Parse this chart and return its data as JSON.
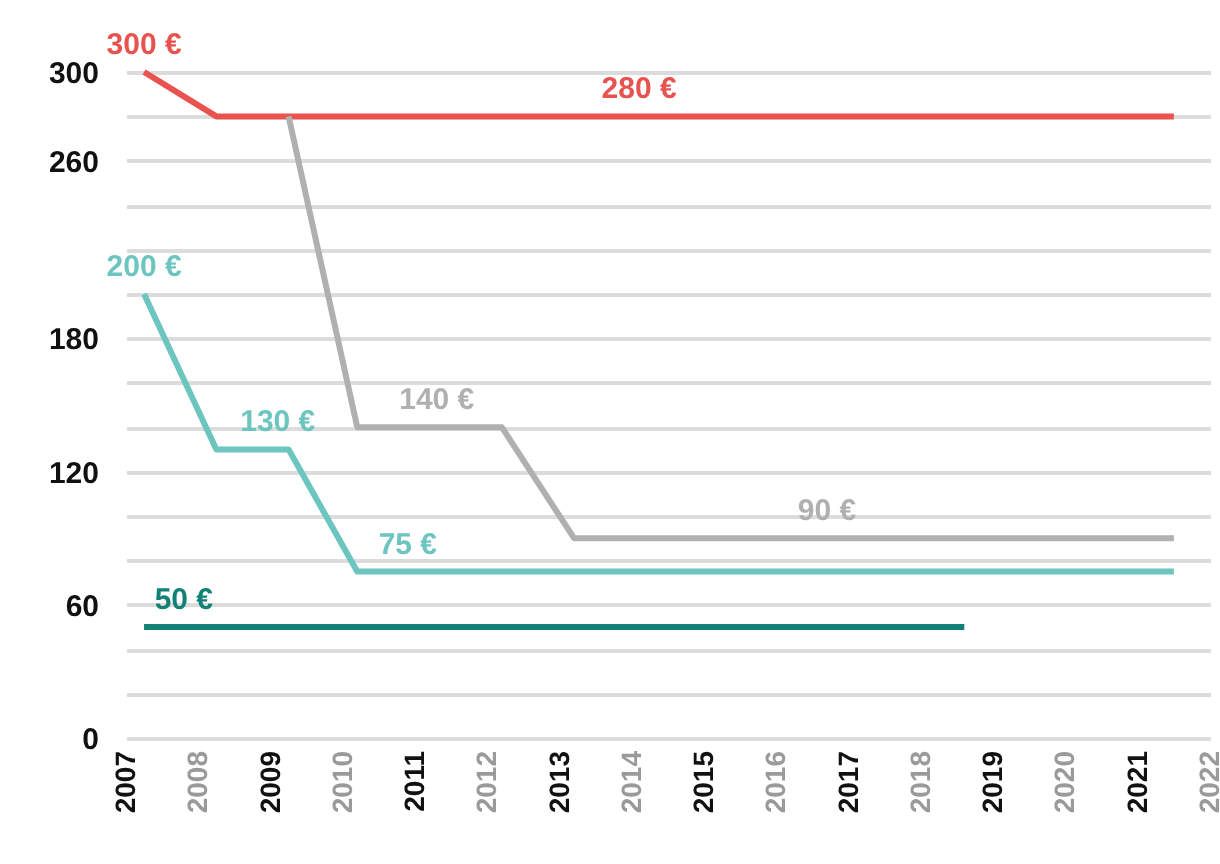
{
  "chart_data": {
    "type": "line",
    "xlim": [
      2007,
      2022
    ],
    "xticks": [
      2007,
      2008,
      2009,
      2010,
      2011,
      2012,
      2013,
      2014,
      2015,
      2016,
      2017,
      2018,
      2019,
      2020,
      2021,
      2022
    ],
    "ylim": [
      0,
      300
    ],
    "yticks": [
      0,
      {
        "value": 20,
        "label": null
      },
      {
        "value": 40,
        "label": null
      },
      60,
      {
        "value": 80,
        "label": null
      },
      {
        "value": 100,
        "label": null
      },
      120,
      {
        "value": 140,
        "label": null
      },
      {
        "value": 160,
        "label": null
      },
      180,
      {
        "value": 200,
        "label": null
      },
      {
        "value": 220,
        "label": null
      },
      {
        "value": 240,
        "label": null
      },
      260,
      {
        "value": 280,
        "label": null
      },
      300
    ],
    "grid": "y",
    "marker": "none",
    "line_style": "solid",
    "series": [
      {
        "color": "#e8534f",
        "x": [
          2007.25,
          2008.25,
          2021.5
        ],
        "values": [
          300,
          280,
          280
        ]
      },
      {
        "color": "#b0b0b0",
        "x": [
          2009.25,
          2010.2,
          2012.2,
          2013.2,
          2021.5
        ],
        "values": [
          280,
          140,
          140,
          90,
          90
        ]
      },
      {
        "color": "#6cc5bf",
        "x": [
          2007.25,
          2008.25,
          2009.25,
          2010.2,
          2021.5
        ],
        "values": [
          200,
          130,
          130,
          75,
          75
        ]
      },
      {
        "color": "#128276",
        "x": [
          2007.25,
          2018.6
        ],
        "values": [
          50,
          50
        ]
      }
    ],
    "annotations": [
      {
        "text": "300 €",
        "x": 2007.25,
        "y": 300
      },
      {
        "text": "280 €",
        "x": 2014.1,
        "y": 280
      },
      {
        "text": "200 €",
        "x": 2007.25,
        "y": 200
      },
      {
        "text": "130 €",
        "x": 2009.1,
        "y": 130
      },
      {
        "text": "140 €",
        "x": 2011.3,
        "y": 140
      },
      {
        "text": "90 €",
        "x": 2016.7,
        "y": 90
      },
      {
        "text": "75 €",
        "x": 2010.9,
        "y": 75
      },
      {
        "text": "50 €",
        "x": 2007.8,
        "y": 50
      }
    ]
  }
}
